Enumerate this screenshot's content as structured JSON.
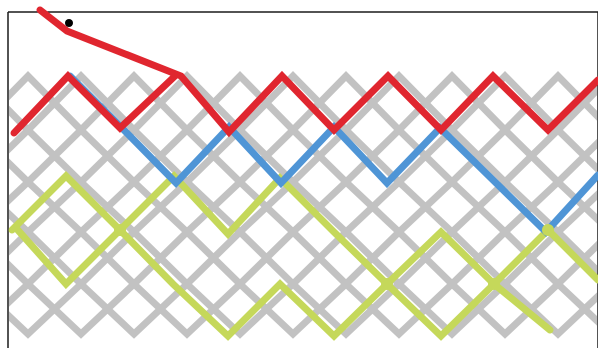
{
  "colors": {
    "background": "#ffffff",
    "frame": "#1a1a1a",
    "grid_path": "#c2c2c2",
    "red_path": "#e0262f",
    "blue_path": "#4f95d6",
    "green_path": "#c5d85a",
    "cursor": "#000000"
  },
  "icons": {
    "cursor": "cursor-dot-icon"
  },
  "paths": [
    {
      "id": "red-path",
      "color_key": "red_path"
    },
    {
      "id": "blue-path",
      "color_key": "blue_path"
    },
    {
      "id": "green-path",
      "color_key": "green_path"
    }
  ]
}
